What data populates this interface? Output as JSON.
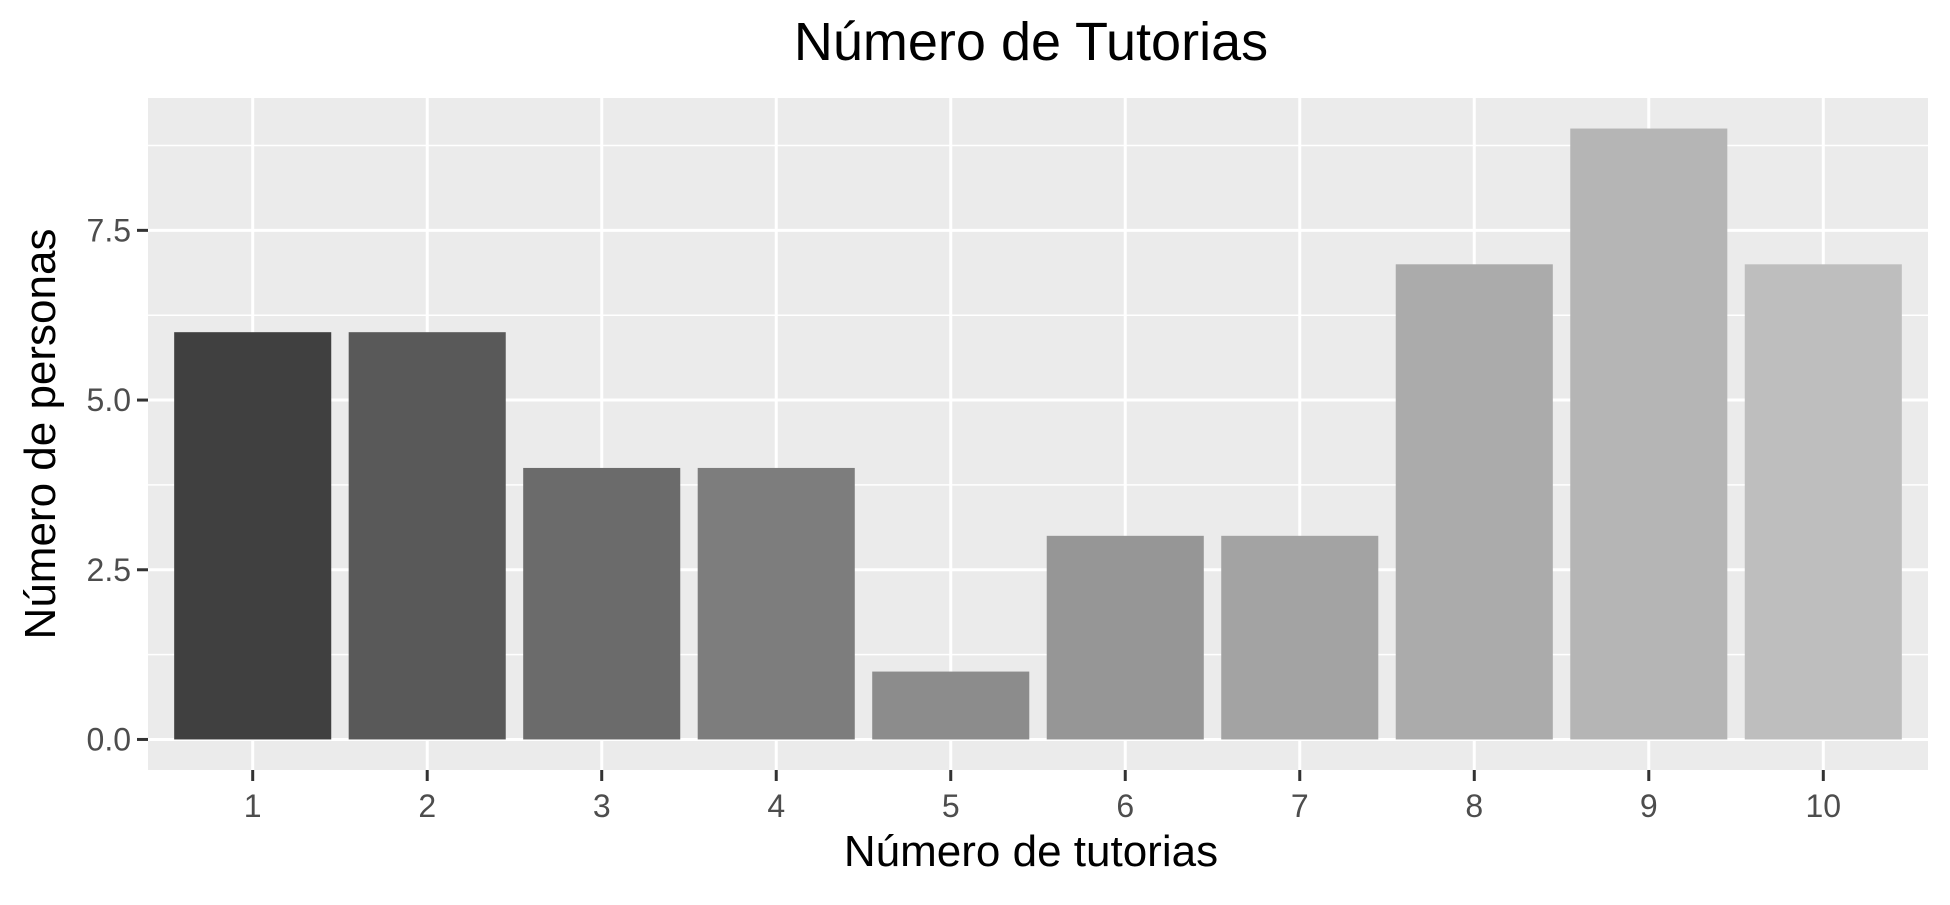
{
  "chart_data": {
    "type": "bar",
    "title": "Número de Tutorias",
    "xlabel": "Número de tutorias",
    "ylabel": "Número de personas",
    "categories": [
      "1",
      "2",
      "3",
      "4",
      "5",
      "6",
      "7",
      "8",
      "9",
      "10"
    ],
    "values": [
      6,
      6,
      4,
      4,
      1,
      3,
      3,
      7,
      9,
      7
    ],
    "bar_colors": [
      "#404040",
      "#595959",
      "#6b6b6b",
      "#7d7d7d",
      "#8c8c8c",
      "#969696",
      "#a3a3a3",
      "#ababab",
      "#b5b5b5",
      "#bebebe"
    ],
    "ylim": [
      -0.45,
      9.45
    ],
    "y_ticks": [
      0,
      2.5,
      5,
      7.5
    ],
    "y_tick_labels": [
      "0.0",
      "2.5",
      "5.0",
      "7.5"
    ],
    "y_minor_ticks": [
      1.25,
      3.75,
      6.25,
      8.75
    ],
    "grid": true,
    "legend": "none",
    "colors": {
      "panel_background": "#ebebeb",
      "grid": "#ffffff",
      "tick_text": "#4d4d4d",
      "title_text": "#000000"
    }
  }
}
